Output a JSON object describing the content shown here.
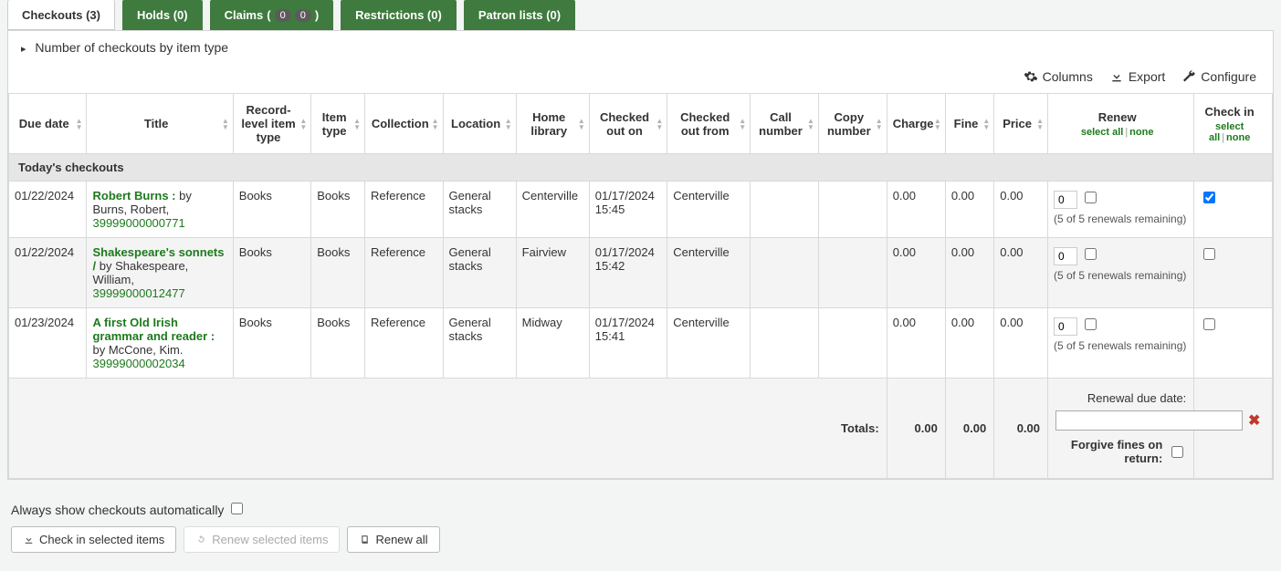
{
  "colors": {
    "tab_bg": "#3f7b3f",
    "link_green": "#1d7a1d",
    "section_bg": "#e6e6e6",
    "alt_row": "#f4f4f4"
  },
  "tabs": [
    {
      "key": "checkouts",
      "label": "Checkouts (3)",
      "active": true
    },
    {
      "key": "holds",
      "label": "Holds (0)"
    },
    {
      "key": "claims",
      "label": "Claims",
      "badges": [
        "0",
        "0"
      ]
    },
    {
      "key": "restrictions",
      "label": "Restrictions (0)"
    },
    {
      "key": "patron_lists",
      "label": "Patron lists (0)"
    }
  ],
  "expander": {
    "label": "Number of checkouts by item type"
  },
  "toolbar": {
    "columns": "Columns",
    "export": "Export",
    "configure": "Configure"
  },
  "headers": {
    "due": "Due date",
    "title": "Title",
    "record_level_item_type": "Record-level item type",
    "item_type": "Item type",
    "collection": "Collection",
    "location": "Location",
    "home_library": "Home library",
    "checked_out_on": "Checked out on",
    "checked_out_from": "Checked out from",
    "call_number": "Call number",
    "copy_number": "Copy number",
    "charge": "Charge",
    "fine": "Fine",
    "price": "Price",
    "renew": "Renew",
    "check_in": "Check in",
    "select_all": "select all",
    "none": "none"
  },
  "section": "Today's checkouts",
  "rows": [
    {
      "due": "01/22/2024",
      "title": "Robert Burns :",
      "byline": " by Burns, Robert,",
      "barcode": "39999000000771",
      "rlit": "Books",
      "itype": "Books",
      "collection": "Reference",
      "location": "General stacks",
      "home_library": "Centerville",
      "checked_out_on": "01/17/2024 15:45",
      "checked_out_from": "Centerville",
      "call": "",
      "copy": "",
      "charge": "0.00",
      "fine": "0.00",
      "price": "0.00",
      "renew_count": "0",
      "renew_note": "(5 of 5 renewals remaining)",
      "checkin_checked": true
    },
    {
      "due": "01/22/2024",
      "title": "Shakespeare's sonnets /",
      "byline": " by Shakespeare, William,",
      "barcode": "39999000012477",
      "rlit": "Books",
      "itype": "Books",
      "collection": "Reference",
      "location": "General stacks",
      "home_library": "Fairview",
      "checked_out_on": "01/17/2024 15:42",
      "checked_out_from": "Centerville",
      "call": "",
      "copy": "",
      "charge": "0.00",
      "fine": "0.00",
      "price": "0.00",
      "renew_count": "0",
      "renew_note": "(5 of 5 renewals remaining)",
      "checkin_checked": false
    },
    {
      "due": "01/23/2024",
      "title": "A first Old Irish grammar and reader :",
      "byline": " by McCone, Kim.",
      "barcode": "39999000002034",
      "rlit": "Books",
      "itype": "Books",
      "collection": "Reference",
      "location": "General stacks",
      "home_library": "Midway",
      "checked_out_on": "01/17/2024 15:41",
      "checked_out_from": "Centerville",
      "call": "",
      "copy": "",
      "charge": "0.00",
      "fine": "0.00",
      "price": "0.00",
      "renew_count": "0",
      "renew_note": "(5 of 5 renewals remaining)",
      "checkin_checked": false
    }
  ],
  "totals": {
    "label": "Totals:",
    "charge": "0.00",
    "fine": "0.00",
    "price": "0.00"
  },
  "footer": {
    "renewal_due_label": "Renewal due date:",
    "forgive_label": "Forgive fines on return:"
  },
  "below": {
    "always": "Always show checkouts automatically",
    "check_in": "Check in selected items",
    "renew_selected": "Renew selected items",
    "renew_all": "Renew all"
  }
}
